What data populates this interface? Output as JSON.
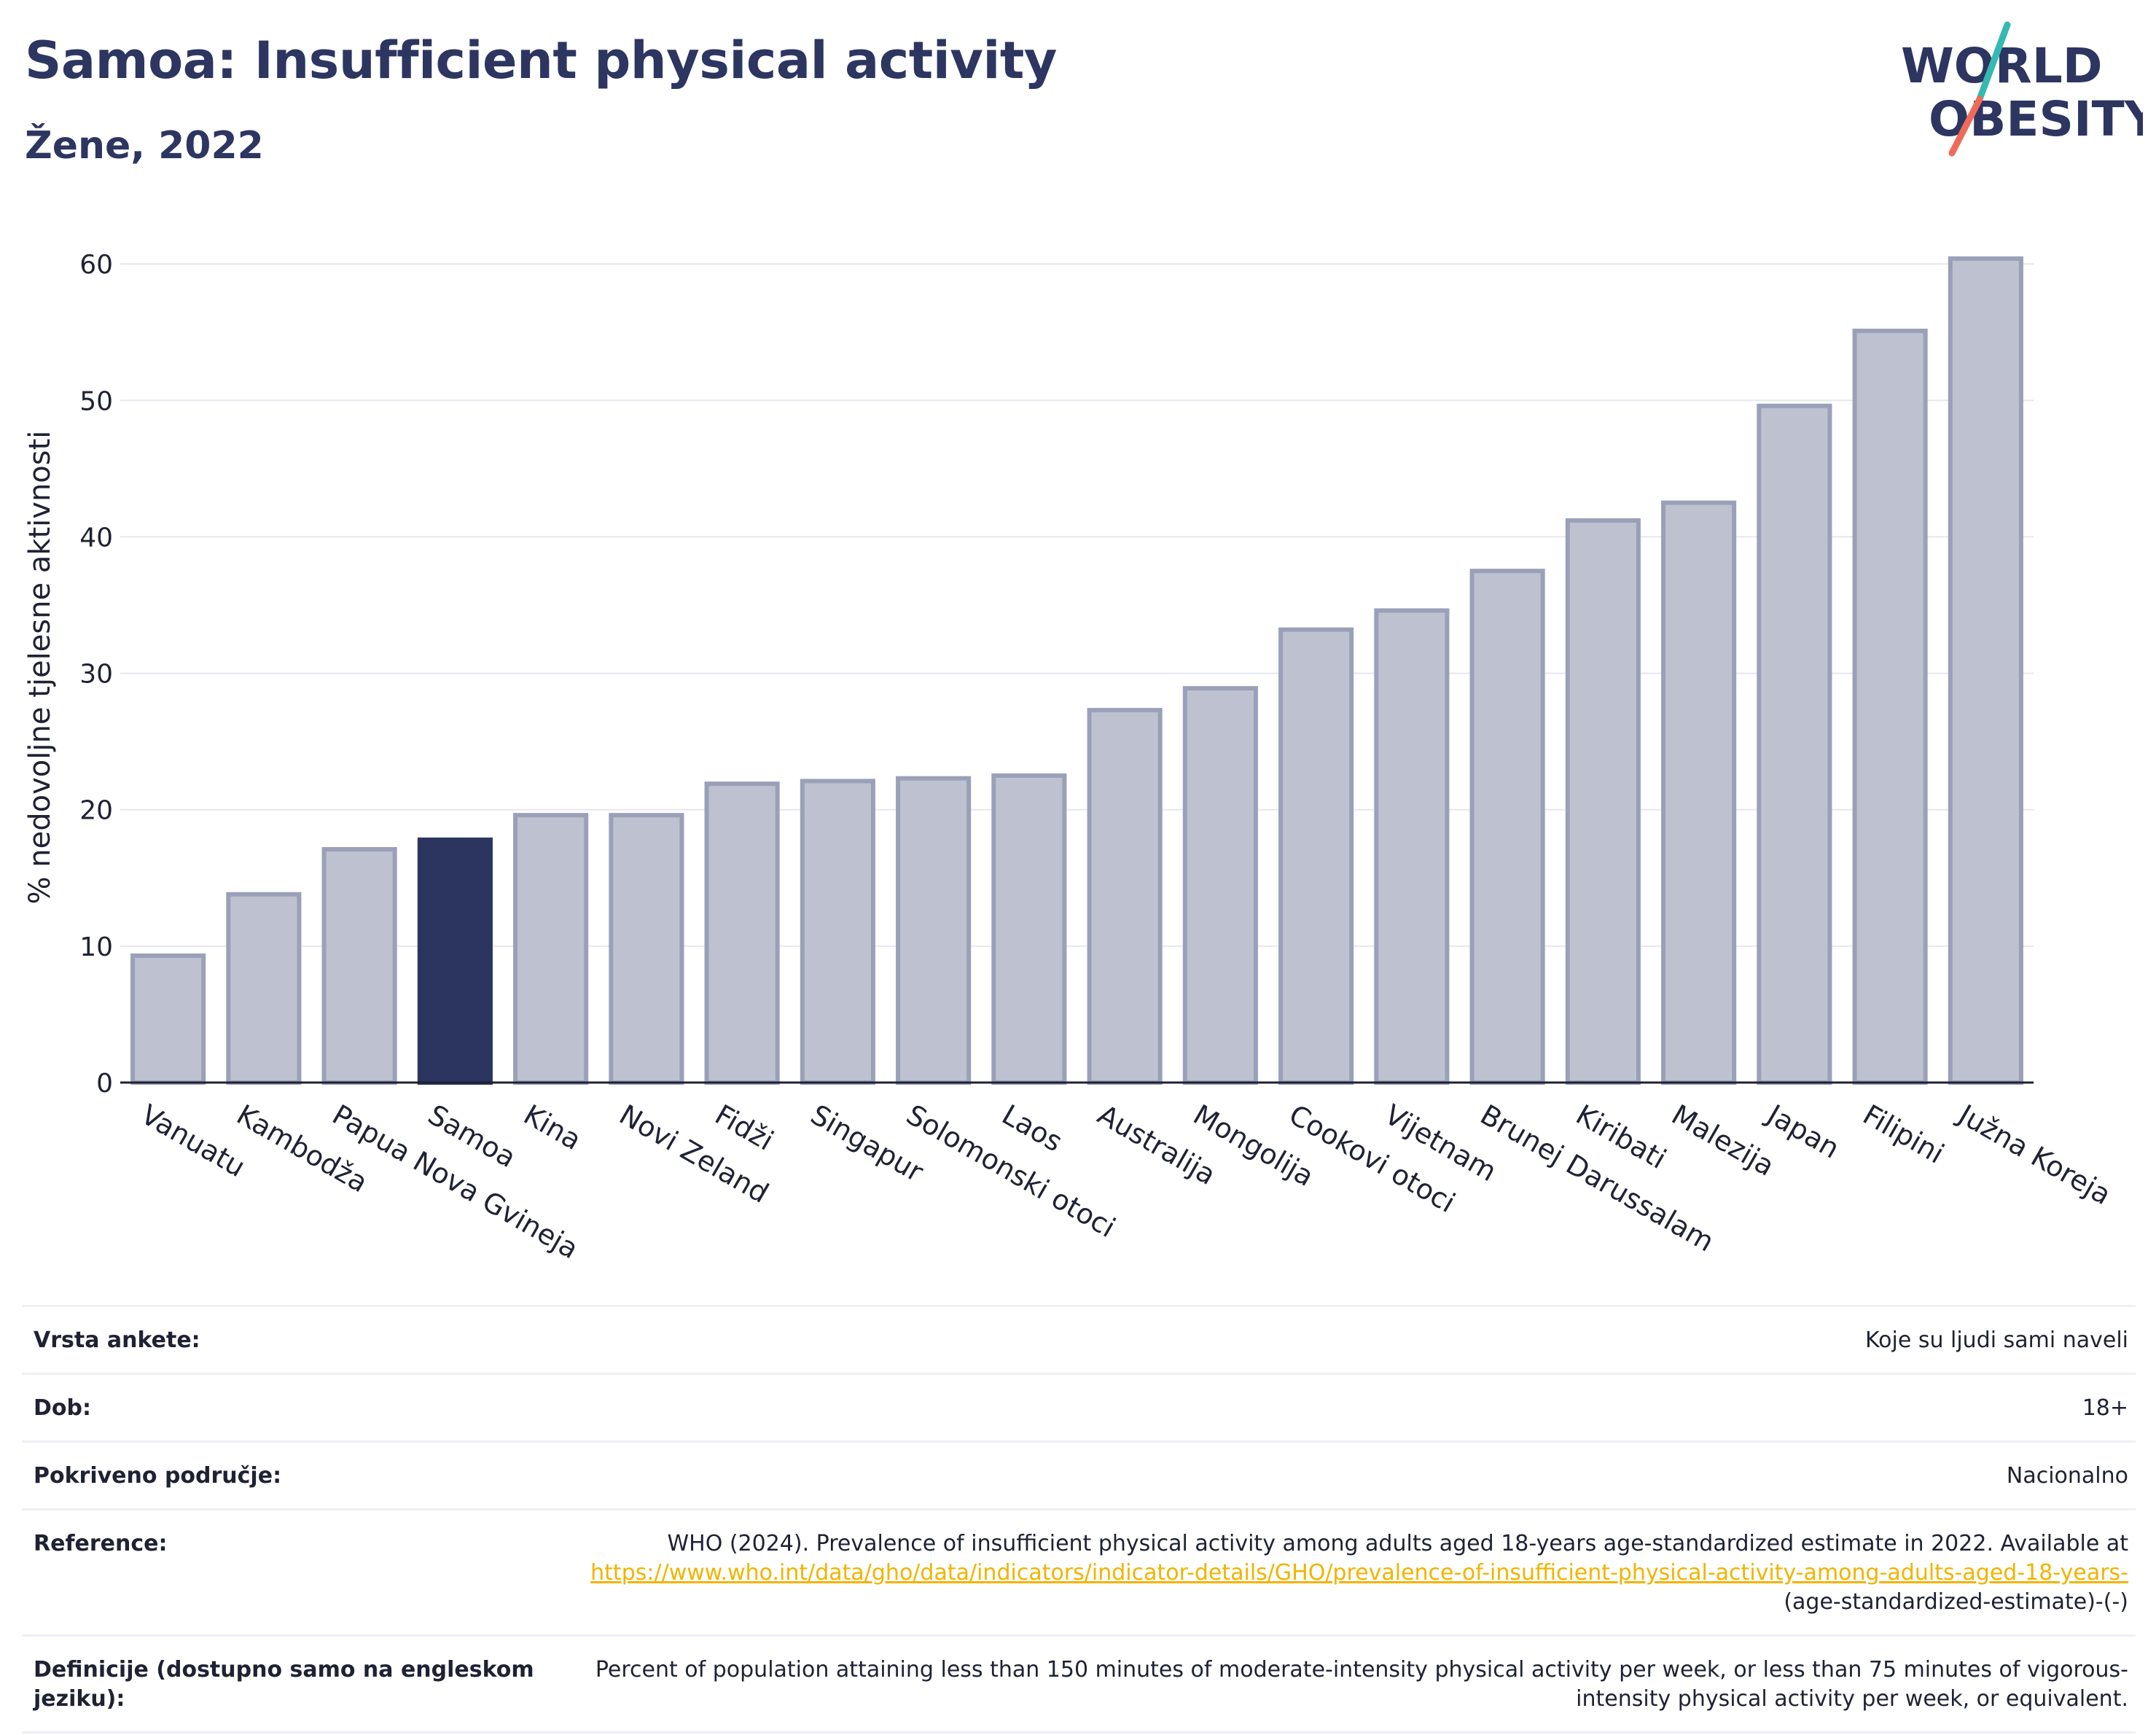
{
  "header": {
    "title": "Samoa: Insufficient physical activity",
    "subtitle": "Žene, 2022",
    "logo_line1": "WORLD",
    "logo_line2": "OBESITY"
  },
  "colors": {
    "title": "#2d3561",
    "bar_default": "#bec1cf",
    "bar_border": "#9ba0b9",
    "bar_highlight": "#2b3560",
    "link": "#f0b400",
    "logo_teal": "#35b9b0",
    "logo_coral": "#ef6a5a"
  },
  "chart_data": {
    "type": "bar",
    "title": "Samoa: Insufficient physical activity",
    "subtitle": "Žene, 2022",
    "ylabel": "% nedovoljne tjelesne aktivnosti",
    "xlabel": "",
    "ylim": [
      0,
      63
    ],
    "yticks": [
      0,
      10,
      20,
      30,
      40,
      50,
      60
    ],
    "grid": true,
    "highlight": "Samoa",
    "categories": [
      "Vanuatu",
      "Kambodža",
      "Papua Nova Gvineja",
      "Samoa",
      "Kina",
      "Novi Zeland",
      "Fidži",
      "Singapur",
      "Solomonski otoci",
      "Laos",
      "Australija",
      "Mongolija",
      "Cookovi otoci",
      "Vijetnam",
      "Brunej Darussalam",
      "Kiribati",
      "Malezija",
      "Japan",
      "Filipini",
      "Južna Koreja"
    ],
    "values": [
      9.3,
      13.8,
      17.1,
      17.8,
      19.6,
      19.6,
      21.9,
      22.1,
      22.3,
      22.5,
      27.3,
      28.9,
      33.2,
      34.6,
      37.5,
      41.2,
      42.5,
      49.6,
      55.1,
      60.4
    ]
  },
  "meta": {
    "rows": [
      {
        "label": "Vrsta ankete:",
        "value": "Koje su ljudi sami naveli"
      },
      {
        "label": "Dob:",
        "value": "18+"
      },
      {
        "label": "Pokriveno područje:",
        "value": "Nacionalno"
      }
    ],
    "reference": {
      "label": "Reference:",
      "text": "WHO (2024). Prevalence of insufficient physical activity among adults aged 18-years age-standardized estimate in 2022. Available at",
      "link": "https://www.who.int/data/gho/data/indicators/indicator-details/GHO/prevalence-of-insufficient-physical-activity-among-adults-aged-18-years-",
      "tail": "(age-standardized-estimate)-(-)"
    },
    "definition": {
      "label": "Definicije (dostupno samo na engleskom jeziku):",
      "value": "Percent of population attaining less than 150 minutes of moderate-intensity physical activity per week, or less than 75 minutes of vigorous-intensity physical activity per week, or equivalent."
    }
  }
}
